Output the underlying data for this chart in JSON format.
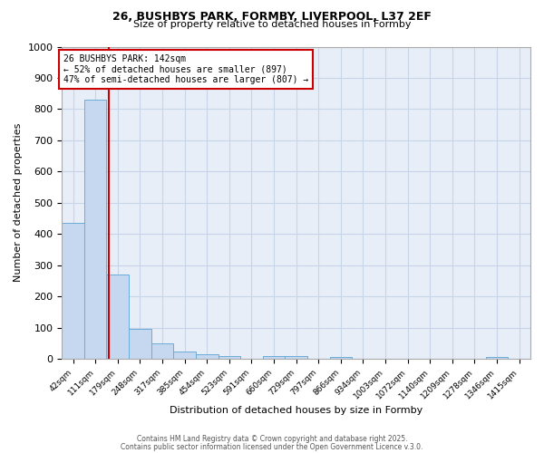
{
  "title_line1": "26, BUSHBYS PARK, FORMBY, LIVERPOOL, L37 2EF",
  "title_line2": "Size of property relative to detached houses in Formby",
  "xlabel": "Distribution of detached houses by size in Formby",
  "ylabel": "Number of detached properties",
  "categories": [
    "42sqm",
    "111sqm",
    "179sqm",
    "248sqm",
    "317sqm",
    "385sqm",
    "454sqm",
    "523sqm",
    "591sqm",
    "660sqm",
    "729sqm",
    "797sqm",
    "866sqm",
    "934sqm",
    "1003sqm",
    "1072sqm",
    "1140sqm",
    "1209sqm",
    "1278sqm",
    "1346sqm",
    "1415sqm"
  ],
  "values": [
    435,
    830,
    270,
    95,
    50,
    22,
    15,
    10,
    0,
    10,
    10,
    0,
    5,
    0,
    0,
    0,
    0,
    0,
    0,
    5,
    0
  ],
  "bar_color": "#c5d8f0",
  "bar_edge_color": "#6aacd8",
  "bar_edge_width": 0.7,
  "grid_color": "#c8d4e8",
  "vline_x_index": 1.62,
  "vline_color": "#cc0000",
  "ylim": [
    0,
    1000
  ],
  "yticks": [
    0,
    100,
    200,
    300,
    400,
    500,
    600,
    700,
    800,
    900,
    1000
  ],
  "annotation_text": "26 BUSHBYS PARK: 142sqm\n← 52% of detached houses are smaller (897)\n47% of semi-detached houses are larger (807) →",
  "annotation_box_color": "#cc0000",
  "footer_line1": "Contains HM Land Registry data © Crown copyright and database right 2025.",
  "footer_line2": "Contains public sector information licensed under the Open Government Licence v.3.0.",
  "bg_color": "#ffffff",
  "plot_bg_color": "#e8eef8"
}
